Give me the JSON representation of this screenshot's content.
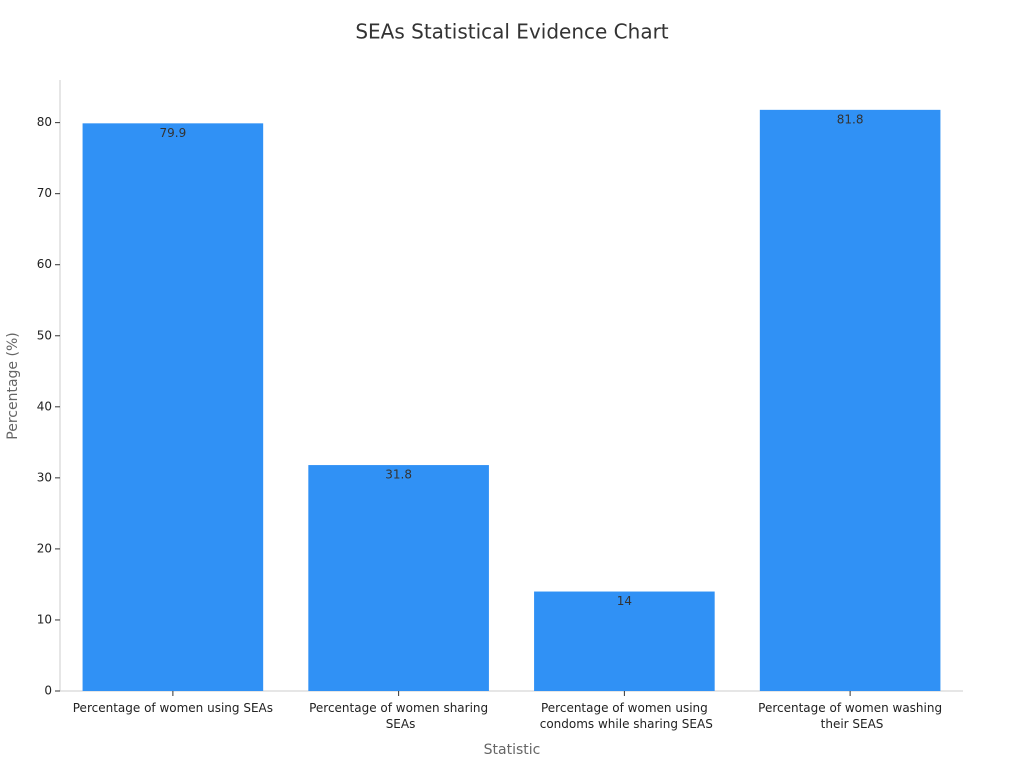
{
  "chart_data": {
    "type": "bar",
    "title": "SEAs Statistical Evidence Chart",
    "x_label": "Statistic",
    "y_label": "Percentage (%)",
    "categories": [
      "Percentage of women using SEAs",
      "Percentage of women sharing SEAs",
      "Percentage of women using condoms while sharing SEAS",
      "Percentage of women washing their SEAS"
    ],
    "values": [
      79.9,
      31.8,
      14,
      81.8
    ],
    "color": "#3091f5",
    "ylim": [
      0,
      86
    ],
    "yticks": [
      0,
      10,
      20,
      30,
      40,
      50,
      60,
      70,
      80
    ],
    "grid": false
  }
}
